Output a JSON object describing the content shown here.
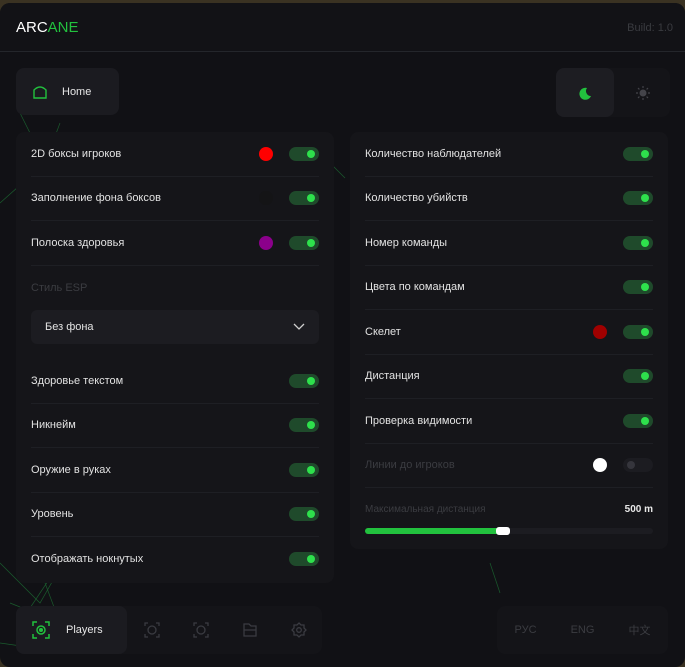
{
  "header": {
    "logo_part1": "ARC",
    "logo_part2": "ANE",
    "build": "Build: 1.0"
  },
  "home": {
    "label": "Home",
    "icon": "home-icon"
  },
  "theme": {
    "dark_icon": "moon-icon",
    "light_icon": "sun-icon",
    "selected": "dark"
  },
  "left_panel": {
    "rows_top": [
      {
        "label": "2D боксы игроков",
        "color": "#ff0000",
        "enabled": true
      },
      {
        "label": "Заполнение фона боксов",
        "color": "#141416",
        "enabled": true
      },
      {
        "label": "Полоска здоровья",
        "color": "#8b008b",
        "enabled": true
      }
    ],
    "esp_style_label": "Стиль ESP",
    "esp_style_value": "Без фона",
    "rows_bottom": [
      {
        "label": "Здоровье текстом",
        "enabled": true
      },
      {
        "label": "Никнейм",
        "enabled": true
      },
      {
        "label": "Оружие в руках",
        "enabled": true
      },
      {
        "label": "Уровень",
        "enabled": true
      },
      {
        "label": "Отображать нокнутых",
        "enabled": true
      }
    ]
  },
  "right_panel": {
    "rows": [
      {
        "label": "Количество наблюдателей",
        "enabled": true
      },
      {
        "label": "Количество убийств",
        "enabled": true
      },
      {
        "label": "Номер команды",
        "enabled": true
      },
      {
        "label": "Цвета по командам",
        "enabled": true
      },
      {
        "label": "Скелет",
        "color": "#a00000",
        "enabled": true
      },
      {
        "label": "Дистанция",
        "enabled": true
      },
      {
        "label": "Проверка видимости",
        "enabled": true
      },
      {
        "label": "Линии до игроков",
        "color": "#ffffff",
        "enabled": false,
        "disabled": true
      }
    ],
    "slider": {
      "label": "Максимальная дистанция",
      "value_text": "500 m",
      "fraction": 0.48
    }
  },
  "nav": {
    "active_label": "Players",
    "icons": [
      "players-icon",
      "radar-icon",
      "visuals-icon",
      "folder-icon",
      "gear-icon"
    ]
  },
  "languages": {
    "items": [
      "РУС",
      "ENG",
      "中文"
    ],
    "selected": 0
  },
  "colors": {
    "accent": "#22c13e"
  }
}
